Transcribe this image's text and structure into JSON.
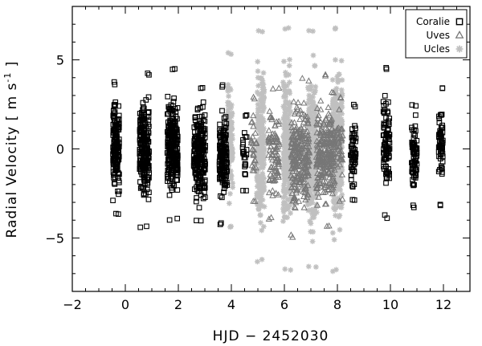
{
  "chart_data": {
    "type": "scatter",
    "title": "",
    "xlabel": "HJD − 2452030",
    "ylabel": "Radial Velocity  [ m s",
    "ylabel_superscript": "-1",
    "ylabel_close": " ]",
    "xlim": [
      -2,
      13
    ],
    "ylim": [
      -8,
      8
    ],
    "x_ticks": [
      -2,
      0,
      2,
      4,
      6,
      8,
      10,
      12
    ],
    "x_tick_labels": [
      "−2",
      "0",
      "2",
      "4",
      "6",
      "8",
      "10",
      "12"
    ],
    "y_ticks": [
      -5,
      0,
      5
    ],
    "y_tick_labels": [
      "−5",
      "0",
      "5"
    ],
    "grid": false,
    "legend_position": "top-right",
    "series": [
      {
        "name": "Coralie",
        "marker": "open-square",
        "color": "#000000",
        "clusters": [
          {
            "x": -0.35,
            "half_width": 0.12,
            "y_range": [
              -3.8,
              3.8
            ],
            "count": 160
          },
          {
            "x": 0.72,
            "half_width": 0.18,
            "y_range": [
              -4.4,
              4.3
            ],
            "count": 220
          },
          {
            "x": 1.78,
            "half_width": 0.2,
            "y_range": [
              -4.0,
              4.5
            ],
            "count": 240
          },
          {
            "x": 2.8,
            "half_width": 0.22,
            "y_range": [
              -4.1,
              3.6
            ],
            "count": 220
          },
          {
            "x": 3.7,
            "half_width": 0.15,
            "y_range": [
              -4.3,
              3.6
            ],
            "count": 150
          },
          {
            "x": 4.5,
            "half_width": 0.08,
            "y_range": [
              -2.5,
              2.0
            ],
            "count": 25
          },
          {
            "x": 8.6,
            "half_width": 0.1,
            "y_range": [
              -3.0,
              2.5
            ],
            "count": 60
          },
          {
            "x": 9.85,
            "half_width": 0.12,
            "y_range": [
              -3.9,
              4.6
            ],
            "count": 90
          },
          {
            "x": 10.9,
            "half_width": 0.1,
            "y_range": [
              -3.3,
              2.6
            ],
            "count": 70
          },
          {
            "x": 11.9,
            "half_width": 0.08,
            "y_range": [
              -3.2,
              3.5
            ],
            "count": 60
          }
        ]
      },
      {
        "name": "Uves",
        "marker": "open-triangle",
        "color": "#777777",
        "clusters": [
          {
            "x": 4.85,
            "half_width": 0.1,
            "y_range": [
              -3.0,
              3.0
            ],
            "count": 30
          },
          {
            "x": 5.6,
            "half_width": 0.2,
            "y_range": [
              -4.0,
              3.5
            ],
            "count": 90
          },
          {
            "x": 6.6,
            "half_width": 0.35,
            "y_range": [
              -5.0,
              4.0
            ],
            "count": 260
          },
          {
            "x": 7.55,
            "half_width": 0.35,
            "y_range": [
              -4.5,
              4.2
            ],
            "count": 260
          },
          {
            "x": 8.1,
            "half_width": 0.1,
            "y_range": [
              -3.0,
              3.0
            ],
            "count": 40
          }
        ]
      },
      {
        "name": "Ucles",
        "marker": "asterisk",
        "color": "#c0c0c0",
        "clusters": [
          {
            "x": 3.95,
            "half_width": 0.1,
            "y_range": [
              -4.5,
              5.5
            ],
            "count": 110
          },
          {
            "x": 5.1,
            "half_width": 0.15,
            "y_range": [
              -6.4,
              6.7
            ],
            "count": 200
          },
          {
            "x": 6.1,
            "half_width": 0.15,
            "y_range": [
              -6.8,
              6.8
            ],
            "count": 240
          },
          {
            "x": 7.05,
            "half_width": 0.18,
            "y_range": [
              -6.8,
              6.8
            ],
            "count": 280
          },
          {
            "x": 8.0,
            "half_width": 0.18,
            "y_range": [
              -6.9,
              6.9
            ],
            "count": 280
          }
        ]
      }
    ]
  }
}
